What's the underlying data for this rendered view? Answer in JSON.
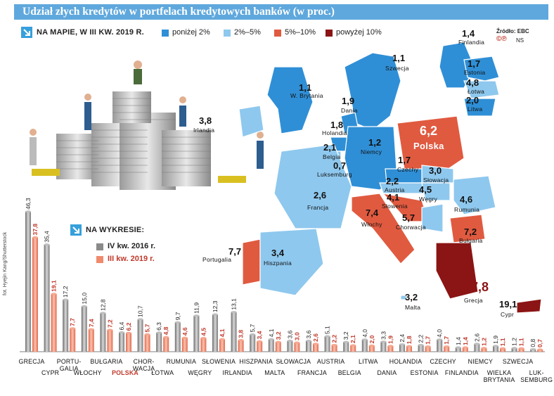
{
  "title": "Udział złych kredytów w portfelach kredytowych banków (w proc.)",
  "map_header": "NA MAPIE, W III KW. 2019 R.",
  "legend": [
    {
      "label": "poniżej 2%",
      "color": "#2f8fd6"
    },
    {
      "label": "2%–5%",
      "color": "#8ec8ee"
    },
    {
      "label": "5%–10%",
      "color": "#e05a40"
    },
    {
      "label": "powyżej 10%",
      "color": "#8b1414"
    }
  ],
  "source": "Źródło: EBC",
  "copyright": "©℗",
  "author_initials": "NS",
  "photo_credit": "fot. Hyejin Kang/Shutterstock",
  "chart_header": "NA WYKRESIE:",
  "colors": {
    "s2016": "#8a8a8a",
    "s2019": "#f08a6c",
    "accent": "#c0392b",
    "title_bg": "#5fa8dd"
  },
  "map_labels": [
    {
      "value": "1,4",
      "name": "Finlandia"
    },
    {
      "value": "1,1",
      "name": "Szwecja"
    },
    {
      "value": "1,7",
      "name": "Estonia"
    },
    {
      "value": "4,8",
      "name": "Łotwa"
    },
    {
      "value": "2,0",
      "name": "Litwa"
    },
    {
      "value": "1,1",
      "name": "W. Brytania"
    },
    {
      "value": "1,9",
      "name": "Dania"
    },
    {
      "value": "3,8",
      "name": "Irlandia"
    },
    {
      "value": "1,8",
      "name": "Holandia"
    },
    {
      "value": "2,1",
      "name": "Belgia"
    },
    {
      "value": "1,2",
      "name": "Niemcy"
    },
    {
      "value": "0,7",
      "name": "Luksemburg"
    },
    {
      "value": "6,2",
      "name": "Polska"
    },
    {
      "value": "1,7",
      "name": "Czechy"
    },
    {
      "value": "3,0",
      "name": "Słowacja"
    },
    {
      "value": "2,2",
      "name": "Austria"
    },
    {
      "value": "4,5",
      "name": "Węgry"
    },
    {
      "value": "4,1",
      "name": "Słowenia"
    },
    {
      "value": "2,6",
      "name": "Francja"
    },
    {
      "value": "4,6",
      "name": "Rumunia"
    },
    {
      "value": "7,4",
      "name": "Włochy"
    },
    {
      "value": "5,7",
      "name": "Chorwacja"
    },
    {
      "value": "7,2",
      "name": "Bułgaria"
    },
    {
      "value": "7,7",
      "name": "Portugalia"
    },
    {
      "value": "3,4",
      "name": "Hiszpania"
    },
    {
      "value": "3,2",
      "name": "Malta"
    },
    {
      "value": "37,8",
      "name": "Grecja"
    },
    {
      "value": "19,1",
      "name": "Cypr"
    }
  ],
  "chart_data": {
    "type": "bar",
    "legend_title": "NA WYKRESIE:",
    "categories": [
      "Grecja",
      "Cypr",
      "Portugalia",
      "Włochy",
      "Bułgaria",
      "Polska",
      "Chorwacja",
      "Łotwa",
      "Rumunia",
      "Węgry",
      "Słowenia",
      "Irlandia",
      "Hiszpania",
      "Malta",
      "Słowacja",
      "Francja",
      "Austria",
      "Belgia",
      "Litwa",
      "Dania",
      "Holandia",
      "Estonia",
      "Czechy",
      "Finlandia",
      "Niemcy",
      "Wielka Brytania",
      "Szwecja",
      "Luksemburg"
    ],
    "category_display": [
      "GRECJA",
      "CYPR",
      "PORTU-\nGALIA",
      "WŁOCHY",
      "BUŁGARIA",
      "POLSKA",
      "CHOR-\nWACJA",
      "ŁOTWA",
      "RUMUNIA",
      "WĘGRY",
      "SŁOWENIA",
      "IRLANDIA",
      "HISZPANIA",
      "MALTA",
      "SŁOWACJA",
      "FRANCJA",
      "AUSTRIA",
      "BELGIA",
      "LITWA",
      "DANIA",
      "HOLANDIA",
      "ESTONIA",
      "CZECHY",
      "FINLANDIA",
      "NIEMCY",
      "WIELKA\nBRYTANIA",
      "SZWECJA",
      "LUK-\nSEMBURG"
    ],
    "series": [
      {
        "name": "IV kw. 2016 r.",
        "values": [
          46.3,
          35.4,
          17.2,
          15.0,
          12.8,
          6.4,
          10.7,
          6.3,
          9.7,
          11.9,
          12.3,
          13.1,
          5.7,
          4.1,
          3.6,
          3.6,
          5.1,
          3.2,
          4.0,
          3.3,
          2.4,
          2.2,
          4.0,
          1.4,
          2.6,
          1.9,
          1.2,
          0.8
        ],
        "labels": [
          "46,3",
          "35,4",
          "17,2",
          "15,0",
          "12,8",
          "6,4",
          "10,7",
          "6,3",
          "9,7",
          "11,9",
          "12,3",
          "13,1",
          "5,7",
          "4,1",
          "3,6",
          "3,6",
          "5,1",
          "3,2",
          "4,0",
          "3,3",
          "2,4",
          "2,2",
          "4,0",
          "1,4",
          "2,6",
          "1,9",
          "1,2",
          "0,8"
        ]
      },
      {
        "name": "III kw. 2019 r.",
        "values": [
          37.8,
          19.1,
          7.7,
          7.4,
          7.2,
          6.2,
          5.7,
          4.8,
          4.6,
          4.5,
          4.1,
          3.8,
          3.4,
          3.2,
          3.0,
          2.6,
          2.2,
          2.1,
          2.0,
          1.9,
          1.8,
          1.7,
          1.7,
          1.4,
          1.2,
          1.1,
          1.1,
          0.7
        ],
        "labels": [
          "37,8",
          "19,1",
          "7,7",
          "7,4",
          "7,2",
          "6,2",
          "5,7",
          "4,8",
          "4,6",
          "4,5",
          "4,1",
          "3,8",
          "3,4",
          "3,2",
          "3,0",
          "2,6",
          "2,2",
          "2,1",
          "2,0",
          "1,9",
          "1,8",
          "1,7",
          "1,7",
          "1,4",
          "1,2",
          "1,1",
          "1,1",
          "0,7"
        ]
      }
    ],
    "highlight": "Polska",
    "ylim": [
      0,
      50
    ]
  }
}
